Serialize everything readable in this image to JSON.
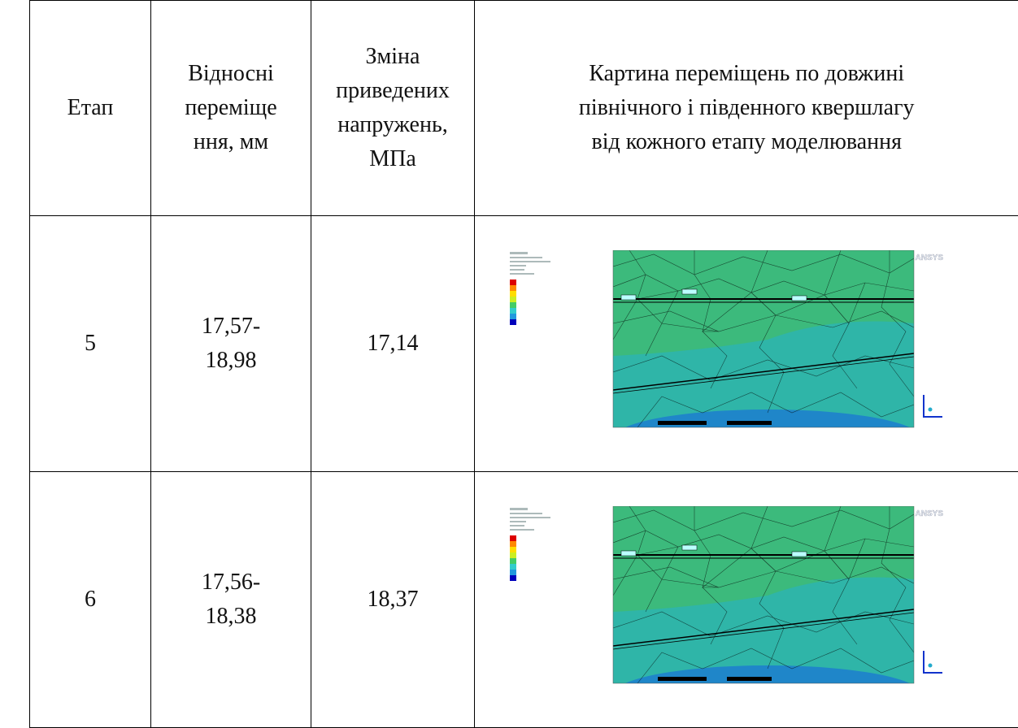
{
  "table": {
    "header": [
      "Етап",
      "Відносні\nпереміще\nння, мм",
      "Зміна\nприведених\nнапружень,\nМПа",
      "Картина переміщень по довжині\nпівнічного і південного квершлагу\nвід кожного етапу моделювання"
    ],
    "rows": [
      {
        "cells": [
          "5",
          "17,57-\n18,98",
          "17,14"
        ],
        "image": {
          "logo": "ANSYS"
        }
      },
      {
        "cells": [
          "6",
          "17,56-\n18,38",
          "18,37"
        ],
        "image": {
          "logo": "ANSYS"
        }
      }
    ]
  }
}
